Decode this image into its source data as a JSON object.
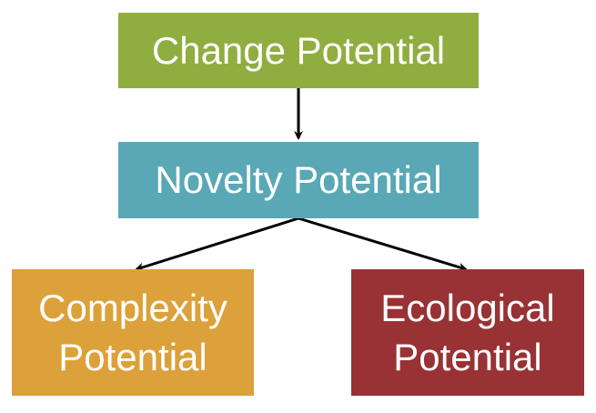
{
  "nodes": {
    "change": {
      "label": "Change Potential",
      "color": "#8fae3f"
    },
    "novelty": {
      "label": "Novelty Potential",
      "color": "#5aa8b6"
    },
    "complexity": {
      "line1": "Complexity",
      "line2": "Potential",
      "color": "#dca13a"
    },
    "ecological": {
      "line1": "Ecological",
      "line2": "Potential",
      "color": "#983234"
    }
  },
  "edges": [
    {
      "from": "Change Potential",
      "to": "Novelty Potential"
    },
    {
      "from": "Novelty Potential",
      "to": "Complexity Potential"
    },
    {
      "from": "Novelty Potential",
      "to": "Ecological Potential"
    }
  ],
  "arrow_color": "#000000"
}
